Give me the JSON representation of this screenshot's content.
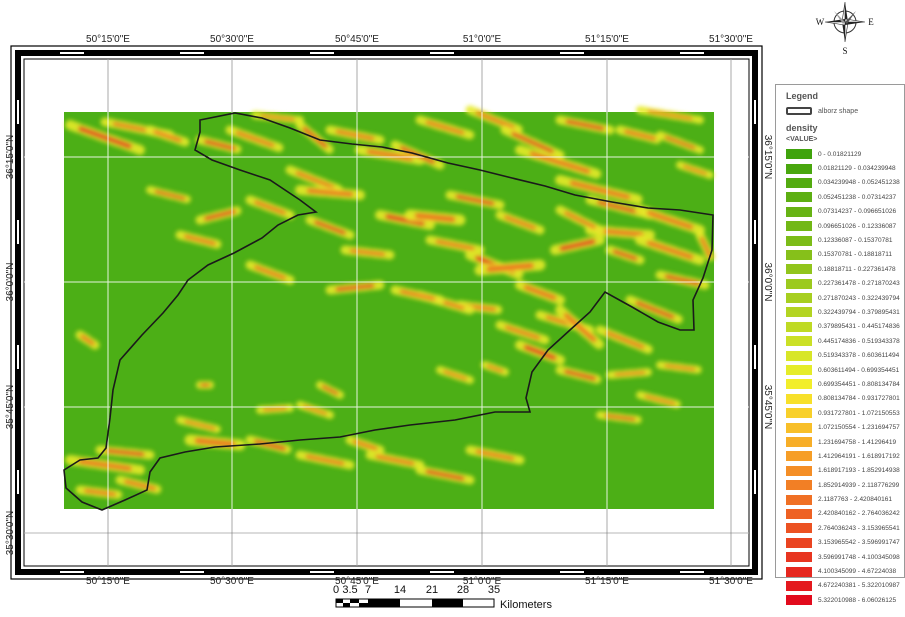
{
  "map": {
    "lon_labels_top": [
      "50°15'0\"E",
      "50°30'0\"E",
      "50°45'0\"E",
      "51°0'0\"E",
      "51°15'0\"E",
      "51°30'0\"E"
    ],
    "lon_labels_bottom": [
      "50°15'0\"E",
      "50°30'0\"E",
      "50°45'0\"E",
      "51°0'0\"E",
      "51°15'0\"E",
      "51°30'0\"E"
    ],
    "lat_labels": [
      "36°15'0\"N",
      "36°0'0\"N",
      "35°45'0\"N",
      "35°30'0\"N"
    ],
    "background_color": "#4caf16",
    "boundary_color": "#1a1a1a"
  },
  "compass": {
    "n": "N",
    "e": "E",
    "s": "S",
    "w": "W"
  },
  "scale_bar": {
    "ticks": [
      "0",
      "3.5",
      "7",
      "14",
      "21",
      "28",
      "35"
    ],
    "unit": "Kilometers"
  },
  "legend": {
    "title": "Legend",
    "layer_name": "alborz shape",
    "raster_name": "density",
    "value_label": "<VALUE>",
    "items": [
      {
        "label": "0 - 0.01821129",
        "color": "#3fa30c"
      },
      {
        "label": "0.01821129 - 0.034239948",
        "color": "#49a70e"
      },
      {
        "label": "0.034239948 - 0.052451238",
        "color": "#53ab10"
      },
      {
        "label": "0.052451238 - 0.07314237",
        "color": "#5daf12"
      },
      {
        "label": "0.07314237 - 0.096651026",
        "color": "#67b314"
      },
      {
        "label": "0.096651026 - 0.12336087",
        "color": "#72b816"
      },
      {
        "label": "0.12336087 - 0.15370781",
        "color": "#7cbc18"
      },
      {
        "label": "0.15370781 - 0.18818711",
        "color": "#86c01a"
      },
      {
        "label": "0.18818711 - 0.227361478",
        "color": "#91c51c"
      },
      {
        "label": "0.227361478 - 0.271870243",
        "color": "#9cca1e"
      },
      {
        "label": "0.271870243 - 0.322439794",
        "color": "#a7cf20"
      },
      {
        "label": "0.322439794 - 0.379895431",
        "color": "#b3d422"
      },
      {
        "label": "0.379895431 - 0.445174836",
        "color": "#bfda24"
      },
      {
        "label": "0.445174836 - 0.519343378",
        "color": "#cbe026"
      },
      {
        "label": "0.519343378 - 0.603611494",
        "color": "#d8e628"
      },
      {
        "label": "0.603611494 - 0.699354451",
        "color": "#e5ec29"
      },
      {
        "label": "0.699354451 - 0.808134784",
        "color": "#f2ee2a"
      },
      {
        "label": "0.808134784 - 0.931727801",
        "color": "#f7e02a"
      },
      {
        "label": "0.931727801 - 1.072150553",
        "color": "#f8d02a"
      },
      {
        "label": "1.072150554 - 1.231694757",
        "color": "#f8bf29"
      },
      {
        "label": "1.231694758 - 1.41296419",
        "color": "#f7ae28"
      },
      {
        "label": "1.412964191 - 1.618917192",
        "color": "#f69e27"
      },
      {
        "label": "1.618917193 - 1.852914938",
        "color": "#f48e26"
      },
      {
        "label": "1.852914939 - 2.118776299",
        "color": "#f27f25"
      },
      {
        "label": "2.1187763 - 2.420840161",
        "color": "#f07024"
      },
      {
        "label": "2.420840162 - 2.764036242",
        "color": "#ee6123"
      },
      {
        "label": "2.764036243 - 3.153965541",
        "color": "#ec5222"
      },
      {
        "label": "3.153965542 - 3.596991747",
        "color": "#ea4421"
      },
      {
        "label": "3.596991748 - 4.100345098",
        "color": "#e83520"
      },
      {
        "label": "4.100345099 - 4.67224038",
        "color": "#e6271f"
      },
      {
        "label": "4.672240381 - 5.322010987",
        "color": "#e4191e"
      },
      {
        "label": "5.322010988 - 6.06026125",
        "color": "#e20b1d"
      }
    ]
  }
}
